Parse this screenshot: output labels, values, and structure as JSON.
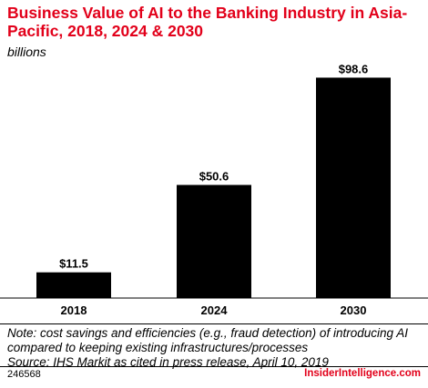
{
  "chart_data": {
    "type": "bar",
    "title": "Business Value of AI to the Banking Industry in Asia-Pacific, 2018, 2024 & 2030",
    "subtitle": "billions",
    "categories": [
      "2018",
      "2024",
      "2030"
    ],
    "values": [
      11.5,
      50.6,
      98.6
    ],
    "value_labels": [
      "$11.5",
      "$50.6",
      "$98.6"
    ],
    "xlabel": "",
    "ylabel": "",
    "ylim": [
      0,
      100
    ],
    "grid": false,
    "legend": "none",
    "bar_color": "#000000"
  },
  "notes": {
    "line1": "Note: cost savings and efficiencies (e.g., fraud detection) of introducing AI",
    "line2": "compared to keeping existing infrastructures/processes",
    "line3": "Source: IHS Markit as cited in press release, April 10, 2019"
  },
  "footer": {
    "chart_id": "246568",
    "brand": "InsiderIntelligence.com"
  },
  "colors": {
    "accent": "#e2001a",
    "bar": "#000000"
  }
}
